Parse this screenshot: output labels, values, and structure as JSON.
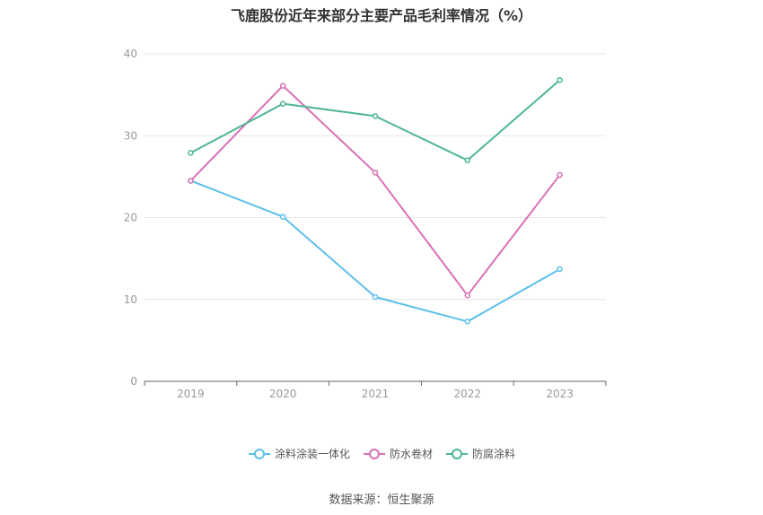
{
  "chart_data": {
    "type": "line",
    "title": "飞鹿股份近年来部分主要产品毛利率情况（%）",
    "categories": [
      "2019",
      "2020",
      "2021",
      "2022",
      "2023"
    ],
    "ylim": [
      0,
      40
    ],
    "yticks": [
      0,
      10,
      20,
      30,
      40
    ],
    "grid": true,
    "legend_position": "bottom",
    "series": [
      {
        "name": "涂料涂装一体化",
        "color": "#5bc0eb",
        "values": [
          24.5,
          20.1,
          10.3,
          7.3,
          13.7
        ]
      },
      {
        "name": "防水卷材",
        "color": "#d870b5",
        "values": [
          24.5,
          36.1,
          25.5,
          10.5,
          25.2
        ]
      },
      {
        "name": "防腐涂料",
        "color": "#4eb596",
        "values": [
          27.9,
          33.9,
          32.4,
          27.0,
          36.8
        ]
      }
    ]
  },
  "source_text": "数据来源：恒生聚源"
}
